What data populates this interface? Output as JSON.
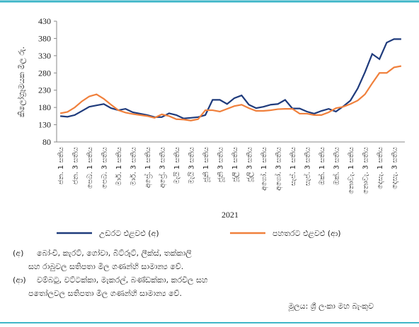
{
  "chart_data": {
    "type": "line",
    "y_label": "කිලෝග්‍රෑමයක මිල රු.",
    "x_label": "2021",
    "categories": [
      "ජන. 1 සතිය",
      null,
      "ජන. 3 සතිය",
      null,
      "පෙබ. 1 සතිය",
      null,
      "පෙබ. 3 සතිය",
      null,
      "මාර්. 1 සතිය",
      null,
      "මාර්. 3 සතිය",
      null,
      "අප්‍රේ. 1 සතිය",
      null,
      "අප්‍රේ. 3 සතිය",
      null,
      "මැයි 1 සතිය",
      null,
      "මැයි 3 සතිය",
      null,
      "ජූනි 1 සතිය",
      null,
      "ජූනි 3 සතිය",
      null,
      "ජූලි 1 සතිය",
      null,
      "ජූලි 3 සතිය",
      null,
      "අගෝ. 1 සතිය",
      null,
      "අගෝ. 3 සතිය",
      null,
      "සැප්. 1 සතිය",
      null,
      "සැප්. 3 සතිය",
      null,
      "ඔක්. 1 සතිය",
      null,
      "ඔක්. 3 සතිය",
      null,
      "නොවැ. 1 සතිය",
      null,
      "නොවැ. 3 සතිය",
      null,
      "දෙසැ. 1 සතිය",
      null,
      "දෙසැ. 3 සතිය",
      null
    ],
    "series": [
      {
        "name": "උඩරට එළවළු (අ)",
        "color": "#1f3b7c",
        "values": [
          155,
          153,
          158,
          170,
          182,
          186,
          190,
          178,
          172,
          176,
          166,
          162,
          158,
          152,
          152,
          163,
          158,
          148,
          150,
          152,
          158,
          202,
          202,
          190,
          207,
          215,
          188,
          178,
          182,
          188,
          190,
          202,
          177,
          177,
          168,
          162,
          170,
          176,
          168,
          183,
          200,
          235,
          282,
          335,
          320,
          368,
          378,
          378
        ]
      },
      {
        "name": "පහතරට එළවළු (ආ)",
        "color": "#f0803c",
        "values": [
          163,
          167,
          180,
          198,
          212,
          218,
          205,
          188,
          172,
          165,
          161,
          158,
          155,
          150,
          160,
          155,
          146,
          145,
          142,
          146,
          172,
          172,
          168,
          176,
          184,
          188,
          178,
          170,
          170,
          172,
          175,
          176,
          176,
          162,
          162,
          158,
          158,
          166,
          178,
          182,
          190,
          200,
          218,
          250,
          280,
          280,
          296,
          300
        ]
      }
    ],
    "ylim": [
      80,
      430
    ],
    "yticks": [
      80,
      130,
      180,
      230,
      280,
      330,
      380,
      430
    ],
    "legend": "bottom",
    "notes": [
      {
        "marker": "(අ)",
        "lines": [
          "බෝංචි, කැරට්, ගෝවා, බීට්රූට්, ලීක්ස්, තක්කාලි",
          "සහ රාබුවල සතිපතා මිල ගණන්හි සාමාන්‍ය වේ."
        ]
      },
      {
        "marker": "(ආ)",
        "lines": [
          "වම්බටු, වට්ටක්කා, මැකරල්, බණ්ඩක්කා, කරවිල සහ",
          "පතෝලවල සතිපතා මිල ගණන්හි සාමාන්‍ය වේ."
        ]
      }
    ],
    "source": "මූලය: ශ්‍රී ලංකා මහ බැංකුව"
  }
}
